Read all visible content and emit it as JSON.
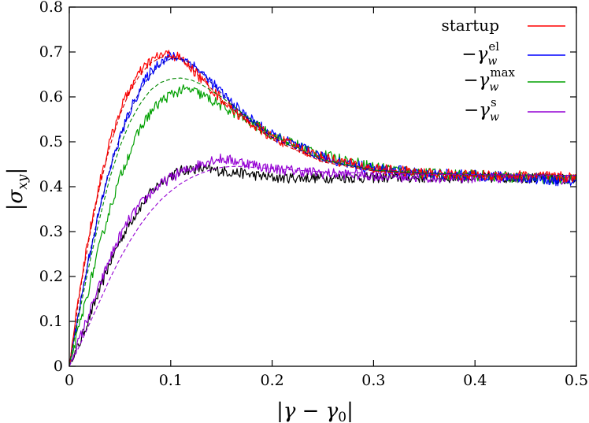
{
  "chart_data": {
    "type": "line",
    "xlabel": "|γ − γ0|",
    "ylabel": "|σxy|",
    "xlim": [
      0,
      0.5
    ],
    "ylim": [
      0,
      0.8
    ],
    "x_ticks": [
      "0",
      "0.1",
      "0.2",
      "0.3",
      "0.4",
      "0.5"
    ],
    "y_ticks": [
      "0",
      "0.1",
      "0.2",
      "0.3",
      "0.4",
      "0.5",
      "0.6",
      "0.7",
      "0.8"
    ],
    "x_tick_values": [
      0,
      0.1,
      0.2,
      0.3,
      0.4,
      0.5
    ],
    "y_tick_values": [
      0,
      0.1,
      0.2,
      0.3,
      0.4,
      0.5,
      0.6,
      0.7,
      0.8
    ],
    "grid": false,
    "legend_position": "top-right",
    "legend": [
      {
        "label": "startup",
        "color": "#ff0000"
      },
      {
        "label": "−γ_w^el",
        "color": "#0000ff"
      },
      {
        "label": "−γ_w^max",
        "color": "#00a000"
      },
      {
        "label": "−γ_w^s",
        "color": "#9400d3"
      }
    ],
    "series": [
      {
        "name": "startup",
        "color": "#ff0000",
        "style": "noisy",
        "x": [
          0,
          0.01,
          0.02,
          0.03,
          0.04,
          0.05,
          0.06,
          0.07,
          0.08,
          0.09,
          0.1,
          0.11,
          0.12,
          0.13,
          0.15,
          0.17,
          0.2,
          0.25,
          0.3,
          0.35,
          0.4,
          0.45,
          0.5
        ],
        "y": [
          0,
          0.17,
          0.3,
          0.41,
          0.5,
          0.57,
          0.62,
          0.655,
          0.68,
          0.693,
          0.695,
          0.685,
          0.665,
          0.64,
          0.595,
          0.555,
          0.51,
          0.465,
          0.44,
          0.43,
          0.425,
          0.425,
          0.42
        ]
      },
      {
        "name": "−γ_w^el",
        "color": "#0000ff",
        "style": "noisy",
        "x": [
          0,
          0.01,
          0.02,
          0.03,
          0.04,
          0.05,
          0.06,
          0.07,
          0.08,
          0.09,
          0.1,
          0.11,
          0.12,
          0.13,
          0.15,
          0.17,
          0.2,
          0.25,
          0.3,
          0.35,
          0.4,
          0.45,
          0.5
        ],
        "y": [
          0,
          0.13,
          0.25,
          0.35,
          0.44,
          0.51,
          0.57,
          0.62,
          0.655,
          0.68,
          0.69,
          0.688,
          0.675,
          0.655,
          0.61,
          0.565,
          0.515,
          0.465,
          0.44,
          0.43,
          0.425,
          0.42,
          0.41
        ]
      },
      {
        "name": "−γ_w^max",
        "color": "#00a000",
        "style": "noisy",
        "x": [
          0,
          0.01,
          0.02,
          0.03,
          0.04,
          0.05,
          0.06,
          0.07,
          0.08,
          0.09,
          0.1,
          0.11,
          0.12,
          0.13,
          0.15,
          0.17,
          0.2,
          0.25,
          0.3,
          0.35,
          0.4,
          0.45,
          0.5
        ],
        "y": [
          0,
          0.09,
          0.18,
          0.27,
          0.35,
          0.42,
          0.48,
          0.53,
          0.565,
          0.59,
          0.605,
          0.615,
          0.615,
          0.605,
          0.58,
          0.555,
          0.515,
          0.47,
          0.445,
          0.43,
          0.425,
          0.42,
          0.415
        ]
      },
      {
        "name": "−γ_w^s",
        "color": "#9400d3",
        "style": "noisy",
        "x": [
          0,
          0.01,
          0.02,
          0.03,
          0.04,
          0.05,
          0.06,
          0.07,
          0.08,
          0.09,
          0.1,
          0.11,
          0.12,
          0.13,
          0.14,
          0.15,
          0.17,
          0.2,
          0.25,
          0.3,
          0.35,
          0.4,
          0.45,
          0.5
        ],
        "y": [
          0,
          0.06,
          0.12,
          0.18,
          0.24,
          0.29,
          0.33,
          0.36,
          0.385,
          0.405,
          0.42,
          0.432,
          0.44,
          0.452,
          0.46,
          0.462,
          0.455,
          0.44,
          0.43,
          0.425,
          0.42,
          0.42,
          0.42,
          0.415
        ]
      },
      {
        "name": "",
        "color": "#000000",
        "style": "noisy",
        "x": [
          0,
          0.01,
          0.02,
          0.03,
          0.04,
          0.05,
          0.06,
          0.07,
          0.08,
          0.09,
          0.1,
          0.11,
          0.12,
          0.13,
          0.15,
          0.17,
          0.2,
          0.25,
          0.3,
          0.35,
          0.4,
          0.45,
          0.5
        ],
        "y": [
          0,
          0.05,
          0.11,
          0.17,
          0.23,
          0.28,
          0.32,
          0.355,
          0.385,
          0.41,
          0.425,
          0.435,
          0.44,
          0.44,
          0.435,
          0.43,
          0.42,
          0.42,
          0.42,
          0.42,
          0.42,
          0.42,
          0.415
        ]
      },
      {
        "name": "",
        "color": "#cc0000",
        "style": "dashed",
        "x": [
          0,
          0.01,
          0.02,
          0.03,
          0.04,
          0.05,
          0.06,
          0.07,
          0.08,
          0.09,
          0.1,
          0.11,
          0.12,
          0.13,
          0.15,
          0.17,
          0.2,
          0.25,
          0.3,
          0.35,
          0.4,
          0.45,
          0.5
        ],
        "y": [
          0,
          0.16,
          0.29,
          0.4,
          0.49,
          0.56,
          0.615,
          0.65,
          0.675,
          0.688,
          0.69,
          0.683,
          0.665,
          0.642,
          0.595,
          0.555,
          0.505,
          0.455,
          0.435,
          0.428,
          0.426,
          0.425,
          0.425
        ]
      },
      {
        "name": "",
        "color": "#0000aa",
        "style": "dashed",
        "x": [
          0,
          0.01,
          0.02,
          0.03,
          0.04,
          0.05,
          0.06,
          0.07,
          0.08,
          0.09,
          0.1,
          0.11,
          0.12,
          0.13,
          0.15,
          0.17,
          0.2,
          0.25,
          0.3,
          0.35,
          0.4,
          0.45,
          0.5
        ],
        "y": [
          0,
          0.13,
          0.25,
          0.35,
          0.44,
          0.51,
          0.57,
          0.615,
          0.65,
          0.673,
          0.685,
          0.685,
          0.675,
          0.655,
          0.608,
          0.563,
          0.51,
          0.458,
          0.437,
          0.43,
          0.427,
          0.426,
          0.425
        ]
      },
      {
        "name": "",
        "color": "#008800",
        "style": "dashed",
        "x": [
          0,
          0.01,
          0.02,
          0.03,
          0.04,
          0.05,
          0.06,
          0.07,
          0.08,
          0.09,
          0.1,
          0.11,
          0.12,
          0.13,
          0.15,
          0.17,
          0.2,
          0.25,
          0.3,
          0.35,
          0.4,
          0.45,
          0.5
        ],
        "y": [
          0,
          0.12,
          0.23,
          0.33,
          0.42,
          0.49,
          0.545,
          0.585,
          0.615,
          0.632,
          0.64,
          0.642,
          0.638,
          0.628,
          0.6,
          0.565,
          0.515,
          0.46,
          0.437,
          0.43,
          0.427,
          0.426,
          0.425
        ]
      },
      {
        "name": "",
        "color": "#9400d3",
        "style": "dashed",
        "x": [
          0,
          0.01,
          0.02,
          0.03,
          0.04,
          0.05,
          0.06,
          0.07,
          0.08,
          0.09,
          0.1,
          0.11,
          0.12,
          0.13,
          0.14,
          0.15,
          0.16,
          0.17,
          0.2,
          0.25,
          0.3,
          0.35,
          0.4,
          0.45,
          0.5
        ],
        "y": [
          0,
          0.045,
          0.095,
          0.145,
          0.195,
          0.24,
          0.28,
          0.315,
          0.345,
          0.37,
          0.39,
          0.407,
          0.42,
          0.43,
          0.438,
          0.443,
          0.445,
          0.445,
          0.44,
          0.433,
          0.43,
          0.428,
          0.427,
          0.426,
          0.425
        ]
      }
    ]
  }
}
